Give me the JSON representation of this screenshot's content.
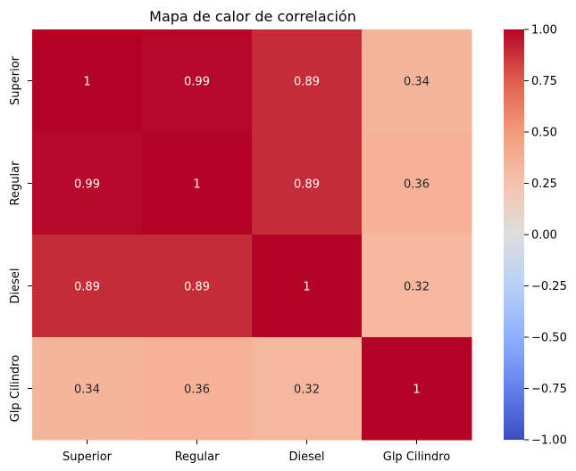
{
  "chart_data": {
    "type": "heatmap",
    "title": "Mapa de calor de correlación",
    "x_labels": [
      "Superior",
      "Regular",
      "Diesel",
      "Glp Cilindro"
    ],
    "y_labels": [
      "Superior",
      "Regular",
      "Diesel",
      "Glp Cilindro"
    ],
    "values": [
      [
        1,
        0.99,
        0.89,
        0.34
      ],
      [
        0.99,
        1,
        0.89,
        0.36
      ],
      [
        0.89,
        0.89,
        1,
        0.32
      ],
      [
        0.34,
        0.36,
        0.32,
        1
      ]
    ],
    "annotations": [
      [
        "1",
        "0.99",
        "0.89",
        "0.34"
      ],
      [
        "0.99",
        "1",
        "0.89",
        "0.36"
      ],
      [
        "0.89",
        "0.89",
        "1",
        "0.32"
      ],
      [
        "0.34",
        "0.36",
        "0.32",
        "1"
      ]
    ],
    "colormap": "coolwarm",
    "vmin": -1,
    "vmax": 1,
    "colorbar_ticks": [
      1.0,
      0.75,
      0.5,
      0.25,
      0.0,
      -0.25,
      -0.5,
      -0.75,
      -1.0
    ],
    "colorbar_tick_labels": [
      "1.00",
      "0.75",
      "0.50",
      "0.25",
      "0.00",
      "−0.25",
      "−0.50",
      "−0.75",
      "−1.00"
    ],
    "grid": false
  }
}
